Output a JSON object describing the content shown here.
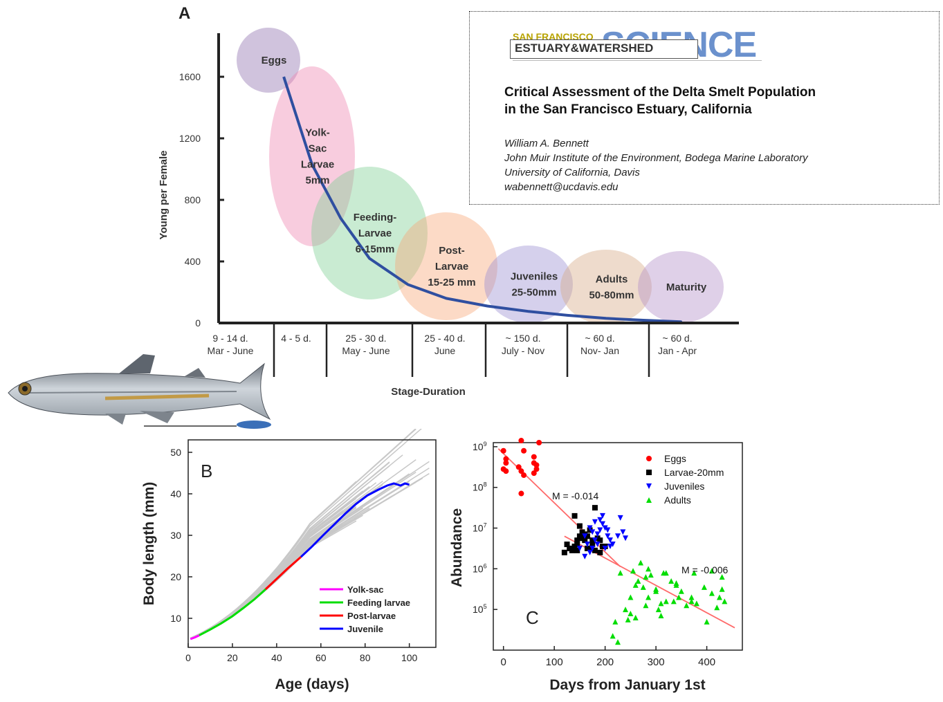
{
  "panel_a": {
    "letter": "A",
    "ylabel": "Young per Female",
    "xlabel": "Stage-Duration",
    "yticks": [
      "0",
      "400",
      "800",
      "1200",
      "1600"
    ],
    "stages": [
      {
        "name": "Eggs",
        "lines": [
          "Eggs"
        ],
        "color": "#8e6fae"
      },
      {
        "name": "Yolk-Sac Larvae",
        "lines": [
          "Yolk-",
          "Sac",
          "Larvae",
          "5mm"
        ],
        "color": "#ef85b0"
      },
      {
        "name": "Feeding-Larvae",
        "lines": [
          "Feeding-",
          "Larvae",
          "6-15mm"
        ],
        "color": "#7fcf93"
      },
      {
        "name": "Post-Larvae",
        "lines": [
          "Post-",
          "Larvae",
          "15-25 mm"
        ],
        "color": "#f7a676"
      },
      {
        "name": "Juveniles",
        "lines": [
          "Juveniles",
          "25-50mm"
        ],
        "color": "#9a8ed1"
      },
      {
        "name": "Adults",
        "lines": [
          "Adults",
          "50-80mm"
        ],
        "color": "#d7a985"
      },
      {
        "name": "Maturity",
        "lines": [
          "Maturity"
        ],
        "color": "#b28fc7"
      }
    ],
    "durations": [
      [
        "9 - 14 d.",
        "Mar - June"
      ],
      [
        "4 - 5 d.",
        ""
      ],
      [
        "25 - 30 d.",
        "May - June"
      ],
      [
        "25 - 40 d.",
        "June"
      ],
      [
        "~ 150 d.",
        "July - Nov"
      ],
      [
        "~ 60 d.",
        "Nov- Jan"
      ],
      [
        "~ 60 d.",
        "Jan - Apr"
      ]
    ]
  },
  "paper": {
    "logo_top": "SAN FRANCISCO",
    "logo_mid": "ESTUARY&WATERSHED",
    "logo_big": "SCIENCE",
    "title_line1": "Critical Assessment of the Delta Smelt Population",
    "title_line2": "in the San Francisco Estuary, California",
    "author": "William A. Bennett",
    "affiliation1": "John Muir Institute of the Environment, Bodega Marine Laboratory",
    "affiliation2": "University of California, Davis",
    "email": "wabennett@ucdavis.edu"
  },
  "chart_data": [
    {
      "type": "line",
      "panel": "A",
      "xlabel": "Stage-Duration",
      "ylabel": "Young per Female",
      "ylim": [
        0,
        1750
      ],
      "categories": [
        "Eggs",
        "Yolk-Sac Larvae",
        "Feeding-Larvae",
        "Post-Larvae",
        "Juveniles",
        "Adults",
        "Maturity"
      ],
      "curve": {
        "x": [
          0.35,
          1.0,
          1.5,
          2.0,
          2.5,
          3.0,
          3.5,
          4.0,
          4.5,
          5.0,
          5.5,
          6.0,
          6.5
        ],
        "y": [
          1600,
          1030,
          680,
          420,
          250,
          160,
          110,
          75,
          50,
          30,
          18,
          8,
          3
        ]
      },
      "series_color": "#2f4fa0"
    },
    {
      "type": "line",
      "panel": "B",
      "title": "B",
      "xlabel": "Age (days)",
      "ylabel": "Body length (mm)",
      "xlim": [
        0,
        112
      ],
      "ylim": [
        3,
        53
      ],
      "xticks": [
        0,
        20,
        40,
        60,
        80,
        100
      ],
      "yticks": [
        10,
        20,
        30,
        40,
        50
      ],
      "legend_position": "lower-right",
      "series": [
        {
          "name": "Yolk-sac",
          "color": "#ff00ff",
          "x": [
            1,
            3,
            5
          ],
          "y": [
            5.0,
            5.4,
            5.9
          ]
        },
        {
          "name": "Feeding larvae",
          "color": "#00dd00",
          "x": [
            5,
            10,
            15,
            20,
            25,
            30,
            35
          ],
          "y": [
            5.9,
            7.3,
            8.8,
            10.5,
            12.5,
            14.6,
            17.0
          ]
        },
        {
          "name": "Post-larvae",
          "color": "#ff0000",
          "x": [
            35,
            40,
            45,
            51
          ],
          "y": [
            17.0,
            19.5,
            22.0,
            24.8
          ]
        },
        {
          "name": "Juvenile",
          "color": "#0000ff",
          "x": [
            51,
            56,
            61,
            66,
            71,
            76,
            81,
            86,
            90,
            93,
            96,
            98,
            100
          ],
          "y": [
            24.8,
            27.3,
            30.0,
            32.6,
            35.2,
            37.6,
            39.6,
            41.0,
            42.0,
            42.5,
            42.0,
            42.5,
            42.2
          ]
        }
      ]
    },
    {
      "type": "scatter",
      "panel": "C",
      "title": "C",
      "xlabel": "Days from January 1st",
      "ylabel": "Abundance",
      "xlim": [
        -20,
        470
      ],
      "ylim_log10": [
        4.0,
        9.1
      ],
      "xticks": [
        0,
        100,
        200,
        300,
        400
      ],
      "ytick_labels": [
        "10^5",
        "10^6",
        "10^7",
        "10^8",
        "10^9"
      ],
      "legend_position": "top-right",
      "annotations": [
        "M = -0.014",
        "M = -0.006"
      ],
      "fit_lines": [
        {
          "x": [
            -10,
            230
          ],
          "log10_y": [
            8.95,
            6.05
          ]
        },
        {
          "x": [
            120,
            455
          ],
          "log10_y": [
            6.8,
            4.55
          ]
        }
      ],
      "series": [
        {
          "name": "Eggs",
          "marker": "circle",
          "color": "#ff0000",
          "x": [
            0,
            5,
            0,
            5,
            35,
            40,
            30,
            35,
            60,
            65,
            70,
            60,
            65,
            35,
            40,
            60,
            5
          ],
          "log10_y": [
            8.9,
            8.6,
            8.45,
            8.4,
            9.15,
            8.9,
            8.5,
            8.4,
            8.35,
            8.45,
            9.1,
            8.6,
            8.55,
            7.85,
            8.3,
            8.75,
            8.7
          ]
        },
        {
          "name": "Larvae-20mm",
          "marker": "square",
          "color": "#000000",
          "x": [
            120,
            130,
            140,
            150,
            160,
            170,
            180,
            190,
            125,
            135,
            145,
            155,
            165,
            175,
            185,
            195,
            140,
            150,
            160,
            170,
            180,
            190,
            200,
            145,
            155,
            165,
            175,
            145
          ],
          "log10_y": [
            6.4,
            6.5,
            6.55,
            6.8,
            6.7,
            6.5,
            6.45,
            6.4,
            6.6,
            6.45,
            6.7,
            6.9,
            6.5,
            6.6,
            6.75,
            6.55,
            7.3,
            7.05,
            6.85,
            6.95,
            7.5,
            6.7,
            6.55,
            6.6,
            6.75,
            6.8,
            6.7,
            6.45
          ]
        },
        {
          "name": "Juveniles",
          "marker": "triangle-down",
          "color": "#0000ff",
          "x": [
            150,
            160,
            170,
            175,
            180,
            185,
            190,
            195,
            200,
            205,
            210,
            165,
            175,
            185,
            195,
            205,
            215,
            225,
            235,
            240,
            180,
            190,
            160,
            170,
            200,
            210,
            230
          ],
          "log10_y": [
            6.5,
            6.8,
            7.0,
            6.9,
            6.7,
            6.6,
            7.2,
            7.3,
            7.0,
            6.8,
            6.7,
            6.6,
            6.5,
            6.85,
            7.1,
            6.95,
            6.6,
            6.8,
            6.9,
            6.75,
            7.15,
            6.95,
            6.3,
            6.4,
            6.5,
            6.55,
            7.25
          ]
        },
        {
          "name": "Adults",
          "marker": "triangle-up",
          "color": "#00dd00",
          "x": [
            215,
            220,
            230,
            240,
            245,
            250,
            255,
            260,
            270,
            275,
            280,
            285,
            290,
            300,
            305,
            310,
            315,
            320,
            330,
            335,
            340,
            345,
            350,
            360,
            370,
            375,
            380,
            395,
            400,
            410,
            420,
            425,
            430,
            430,
            435,
            225,
            250,
            265,
            285,
            300,
            310,
            340,
            260,
            280,
            320,
            370,
            410
          ],
          "log10_y": [
            4.35,
            4.7,
            5.9,
            5.0,
            4.75,
            5.3,
            5.95,
            5.6,
            6.15,
            5.55,
            5.1,
            5.3,
            5.85,
            5.5,
            5.0,
            4.85,
            5.9,
            5.2,
            5.7,
            5.2,
            5.6,
            5.3,
            5.45,
            5.1,
            5.3,
            5.9,
            5.15,
            5.55,
            4.7,
            5.4,
            5.05,
            5.3,
            5.8,
            5.5,
            5.2,
            4.2,
            4.9,
            5.7,
            6.0,
            5.45,
            5.15,
            5.65,
            4.8,
            5.8,
            5.9,
            5.2,
            5.95
          ]
        }
      ]
    }
  ]
}
